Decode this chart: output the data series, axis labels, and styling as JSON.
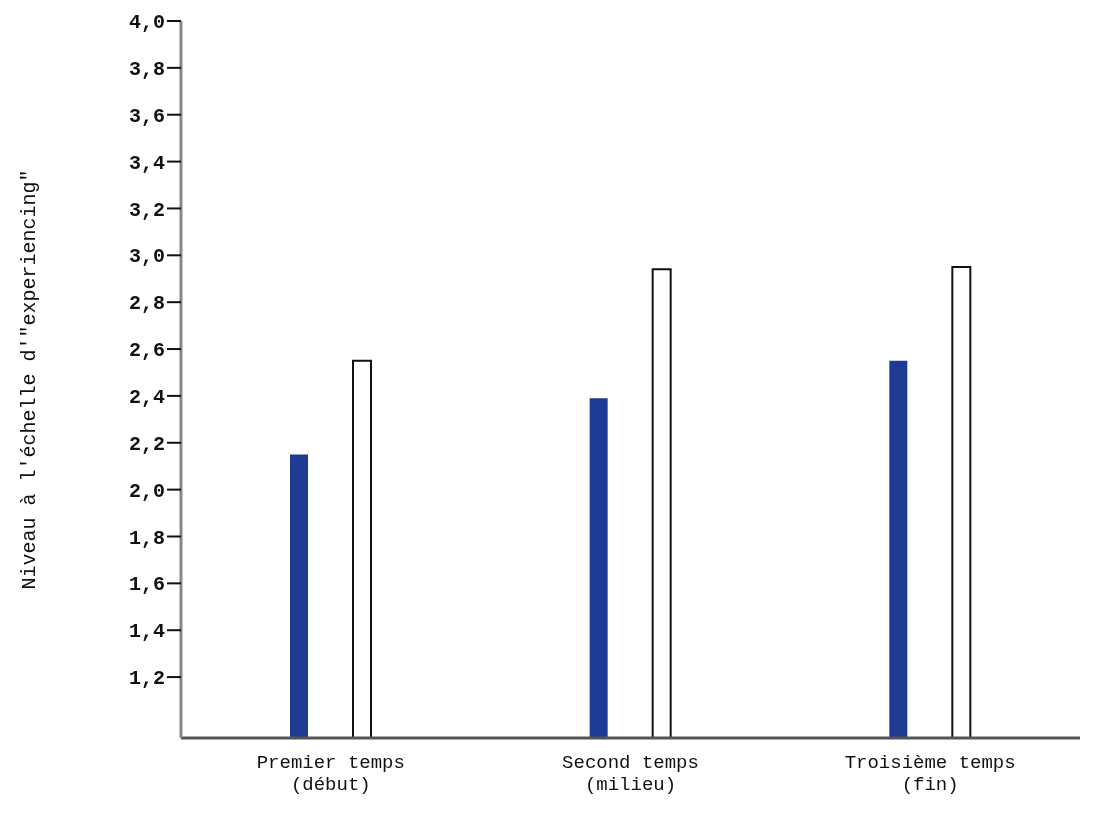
{
  "chart_data": {
    "type": "bar",
    "ylabel": "Niveau à l'échelle d'\"experiencing\"",
    "categories": [
      "Premier temps\n(début)",
      "Second temps\n(milieu)",
      "Troisième temps\n(fin)"
    ],
    "series": [
      {
        "color": "#1f3a93",
        "values": [
          2.15,
          2.39,
          2.55
        ]
      },
      {
        "color": "#ffffff",
        "values": [
          2.55,
          2.94,
          2.95
        ]
      }
    ],
    "ylim": [
      0.94,
      4.0
    ],
    "yticks": [
      {
        "value": 1.2,
        "label": "1,2"
      },
      {
        "value": 1.4,
        "label": "1,4"
      },
      {
        "value": 1.6,
        "label": "1,6"
      },
      {
        "value": 1.8,
        "label": "1,8"
      },
      {
        "value": 2.0,
        "label": "2,0"
      },
      {
        "value": 2.2,
        "label": "2,2"
      },
      {
        "value": 2.4,
        "label": "2,4"
      },
      {
        "value": 2.6,
        "label": "2,6"
      },
      {
        "value": 2.8,
        "label": "2,8"
      },
      {
        "value": 3.0,
        "label": "3,0"
      },
      {
        "value": 3.2,
        "label": "3,2"
      },
      {
        "value": 3.4,
        "label": "3,4"
      },
      {
        "value": 3.6,
        "label": "3,6"
      },
      {
        "value": 3.8,
        "label": "3,8"
      },
      {
        "value": 4.0,
        "label": "4,0"
      }
    ],
    "grid": false,
    "legend": false
  }
}
